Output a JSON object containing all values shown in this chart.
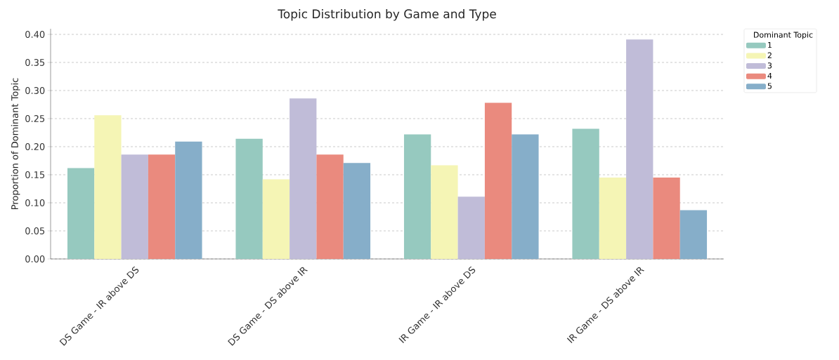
{
  "chart_data": {
    "type": "bar",
    "title": "Topic Distribution by Game and Type",
    "ylabel": "Proportion of Dominant Topic",
    "legend_title": "Dominant Topic",
    "categories": [
      "DS Game - IR above DS",
      "DS Game - DS above IR",
      "IR Game - IR above DS",
      "IR Game - DS above IR"
    ],
    "series": [
      {
        "name": "1",
        "color": "#96c9bf",
        "values": [
          0.162,
          0.214,
          0.222,
          0.232
        ]
      },
      {
        "name": "2",
        "color": "#f5f5b5",
        "values": [
          0.256,
          0.142,
          0.167,
          0.145
        ]
      },
      {
        "name": "3",
        "color": "#c0bcd8",
        "values": [
          0.186,
          0.286,
          0.111,
          0.391
        ]
      },
      {
        "name": "4",
        "color": "#ea8a7e",
        "values": [
          0.186,
          0.186,
          0.278,
          0.145
        ]
      },
      {
        "name": "5",
        "color": "#86aec9",
        "values": [
          0.209,
          0.171,
          0.222,
          0.087
        ]
      }
    ],
    "ylim": [
      0,
      0.41
    ],
    "yticks": [
      {
        "value": 0,
        "label": "0.00"
      },
      {
        "value": 0.05,
        "label": "0.05"
      },
      {
        "value": 0.1,
        "label": "0.10"
      },
      {
        "value": 0.15,
        "label": "0.15"
      },
      {
        "value": 0.2,
        "label": "0.20"
      },
      {
        "value": 0.25,
        "label": "0.25"
      },
      {
        "value": 0.3,
        "label": "0.30"
      },
      {
        "value": 0.35,
        "label": "0.35"
      },
      {
        "value": 0.4,
        "label": "0.40"
      }
    ],
    "grid": "y",
    "legend": "top right"
  }
}
